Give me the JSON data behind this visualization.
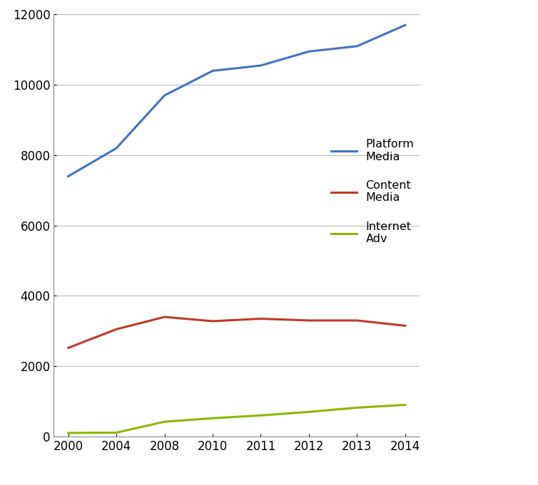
{
  "x_years": [
    2000,
    2004,
    2008,
    2010,
    2011,
    2012,
    2013,
    2014
  ],
  "platform_media": [
    7400,
    8200,
    9700,
    10400,
    10550,
    10950,
    11100,
    11700
  ],
  "content_media": [
    2520,
    3050,
    3400,
    3280,
    3350,
    3300,
    3300,
    3150
  ],
  "internet_adv": [
    100,
    110,
    420,
    520,
    600,
    700,
    820,
    900
  ],
  "platform_color": "#4472C4",
  "content_color": "#C0392B",
  "internet_color": "#8DB600",
  "background_color": "#FFFFFF",
  "ylim": [
    0,
    12000
  ],
  "yticks": [
    0,
    2000,
    4000,
    6000,
    8000,
    10000,
    12000
  ],
  "legend_labels": [
    "Platform\nMedia",
    "Content\nMedia",
    "Internet\nAdv"
  ]
}
